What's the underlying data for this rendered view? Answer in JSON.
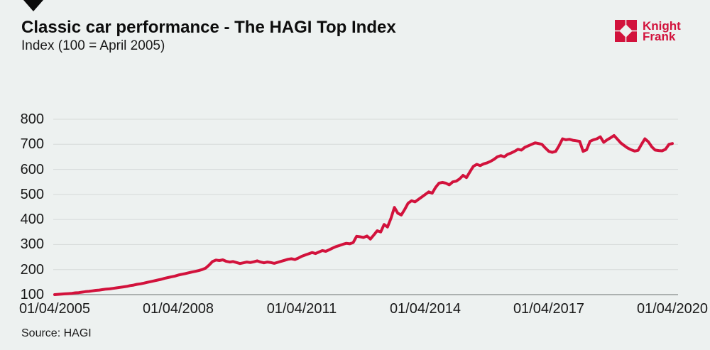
{
  "header": {
    "title": "Classic car performance - The HAGI Top Index",
    "subtitle": "Index (100 = April 2005)",
    "brand": {
      "name": "Knight Frank",
      "line1": "Knight",
      "line2": "Frank"
    }
  },
  "footer": {
    "source": "Source: HAGI"
  },
  "colors": {
    "background": "#edf1f0",
    "line": "#d2123c",
    "gridline": "#d6dad9",
    "baseline": "#868b8a",
    "text": "#1a1a1a",
    "brand_red": "#d2123c",
    "triangle": "#0b0b0b"
  },
  "chart_data": {
    "type": "line",
    "title": "Classic car performance - The HAGI Top Index",
    "subtitle": "Index (100 = April 2005)",
    "source": "Source: HAGI",
    "frequency": "monthly",
    "x_start": "01/04/2005",
    "x_end": "01/04/2020",
    "x_tick_labels": [
      "01/04/2005",
      "01/04/2008",
      "01/04/2011",
      "01/04/2014",
      "01/04/2017",
      "01/04/2020"
    ],
    "x_tick_month_indices": [
      0,
      36,
      72,
      108,
      144,
      180
    ],
    "y_ticks": [
      100,
      200,
      300,
      400,
      500,
      600,
      700,
      800
    ],
    "ylim": [
      100,
      800
    ],
    "grid": "horizontal",
    "legend": "none",
    "series": [
      {
        "name": "HAGI Top Index",
        "color": "#d2123c",
        "values": [
          100,
          101,
          102,
          103,
          104,
          105,
          107,
          108,
          110,
          112,
          113,
          115,
          117,
          118,
          120,
          122,
          123,
          125,
          127,
          129,
          131,
          133,
          136,
          138,
          141,
          143,
          146,
          149,
          152,
          155,
          158,
          161,
          165,
          168,
          171,
          174,
          178,
          181,
          184,
          187,
          190,
          193,
          196,
          200,
          206,
          218,
          232,
          238,
          236,
          239,
          233,
          230,
          232,
          228,
          224,
          227,
          230,
          228,
          231,
          235,
          230,
          227,
          230,
          228,
          225,
          229,
          233,
          237,
          241,
          243,
          240,
          246,
          253,
          258,
          263,
          268,
          264,
          270,
          276,
          273,
          279,
          286,
          292,
          296,
          301,
          305,
          303,
          308,
          333,
          331,
          328,
          334,
          322,
          338,
          355,
          350,
          380,
          370,
          405,
          448,
          425,
          418,
          440,
          465,
          475,
          470,
          480,
          490,
          500,
          510,
          505,
          528,
          545,
          548,
          545,
          538,
          550,
          553,
          562,
          576,
          567,
          590,
          612,
          620,
          615,
          622,
          626,
          632,
          640,
          650,
          655,
          650,
          660,
          665,
          672,
          680,
          677,
          688,
          694,
          700,
          706,
          703,
          700,
          685,
          672,
          668,
          672,
          695,
          722,
          718,
          720,
          716,
          714,
          712,
          672,
          678,
          712,
          718,
          722,
          730,
          708,
          718,
          726,
          735,
          720,
          705,
          695,
          685,
          678,
          673,
          676,
          700,
          722,
          710,
          690,
          677,
          675,
          674,
          680,
          700,
          703
        ]
      }
    ]
  }
}
